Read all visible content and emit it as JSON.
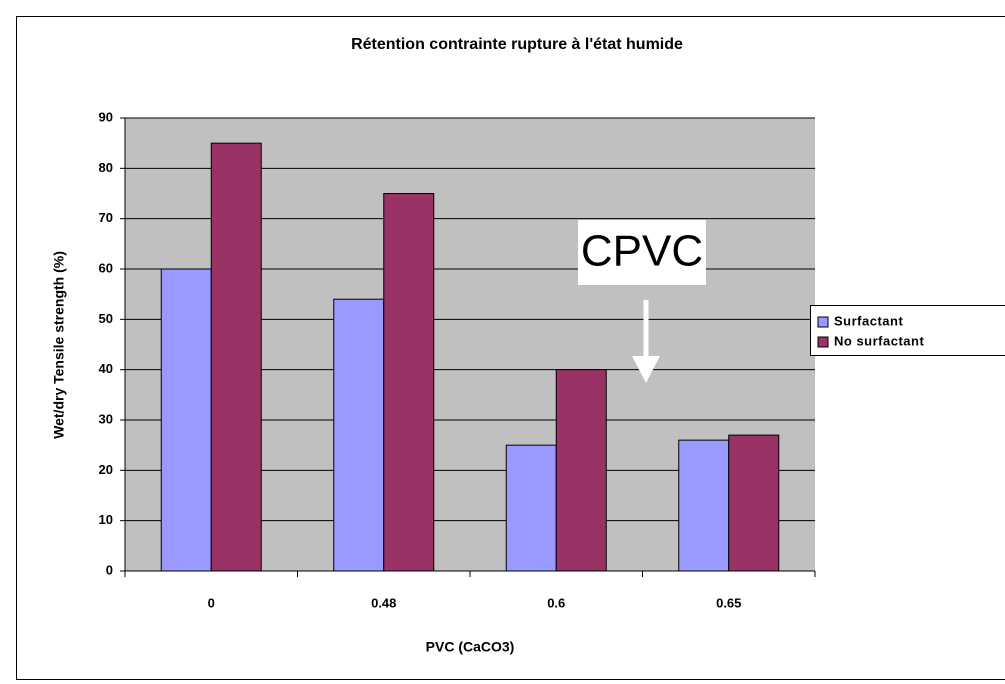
{
  "chart_data": {
    "type": "bar",
    "title": "Rétention contrainte rupture à l'état humide",
    "x_label": "PVC (CaCO3)",
    "y_label": "Wet/dry Tensile strength (%)",
    "categories": [
      "0",
      "0.48",
      "0.6",
      "0.65"
    ],
    "series": [
      {
        "name": "Surfactant",
        "color": "#9999ff",
        "values": [
          60,
          54,
          25,
          26
        ]
      },
      {
        "name": "No surfactant",
        "color": "#993366",
        "values": [
          85,
          75,
          40,
          27
        ]
      }
    ],
    "ylim": [
      0,
      90
    ],
    "yticks": [
      0,
      10,
      20,
      30,
      40,
      50,
      60,
      70,
      80,
      90
    ],
    "grid": true,
    "legend": "right",
    "annotations": [
      "CPVC"
    ]
  }
}
